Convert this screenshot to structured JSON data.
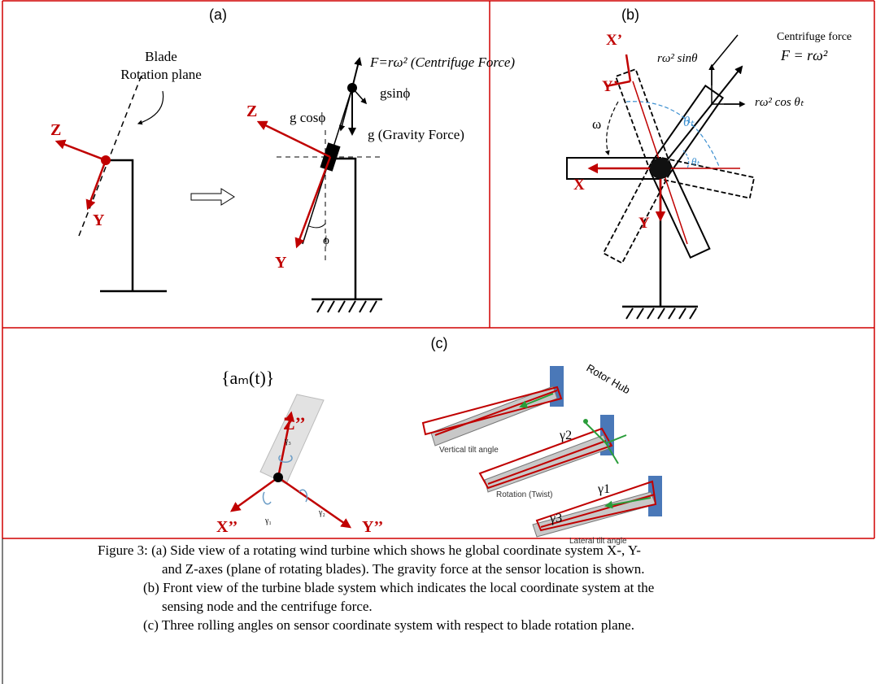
{
  "panel_a": {
    "label": "(a)",
    "plane_label_1": "Blade",
    "plane_label_2": "Rotation plane",
    "left_z": "Z",
    "left_y": "Y",
    "force_label": "F=rω² (Centrifuge Force)",
    "gsin": "gsinϕ",
    "gcos": "g cosϕ",
    "gravity": "g (Gravity Force)",
    "right_z": "Z",
    "right_y": "Y",
    "phi": "ϕ"
  },
  "panel_b": {
    "label": "(b)",
    "centrifuge": "Centrifuge force",
    "force": "F = rω²",
    "sin": "rω² sinθ",
    "cos": "rω² cos θₜ",
    "x_prime": "X’",
    "y_prime": "Y’",
    "omega": "ω",
    "theta_1": "θₜ",
    "theta_2": "θₜ",
    "x": "X",
    "y": "Y"
  },
  "panel_c": {
    "label": "(c)",
    "signal": "{aₘ(t)}",
    "z": "Z’’",
    "x": "X’’",
    "y": "Y’’",
    "g3": "γ₃",
    "g1": "γ₁",
    "g2": "γ₂",
    "vertical": "Vertical tilt angle",
    "gamma2": "γ2",
    "hub": "Rotor Hub",
    "rotation": "Rotation (Twist)",
    "gamma1": "γ1",
    "gamma3": "γ3",
    "lateral": "Lateral tilt angle"
  },
  "caption": {
    "lines": [
      "Figure 3: (a) Side view of a rotating wind turbine which shows he global coordinate system X-, Y-",
      "and Z-axes (plane of rotating blades). The gravity force at the sensor location is shown.",
      "(b) Front view of the turbine blade system which indicates the local coordinate system at the",
      "sensing node and the centrifuge force.",
      "(c) Three rolling angles on sensor coordinate system with respect to blade rotation plane."
    ]
  }
}
